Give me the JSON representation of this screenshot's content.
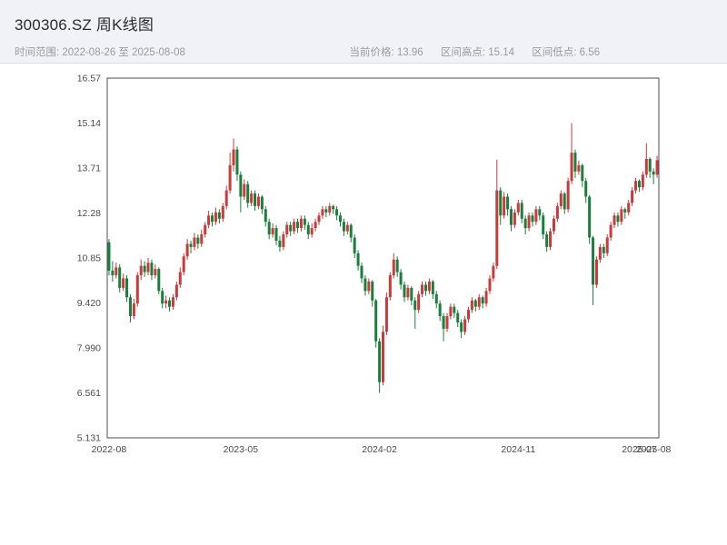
{
  "header": {
    "title": "300306.SZ 周K线图",
    "time_range": "时间范围: 2022-08-26 至 2025-08-08",
    "current_price": "当前价格: 13.96",
    "range_high": "区间高点: 15.14",
    "range_low": "区间低点: 6.56"
  },
  "chart_data": {
    "type": "candlestick",
    "title": "300306.SZ 周K线图",
    "xlabel": "",
    "ylabel": "",
    "grid": false,
    "current_price": 13.96,
    "range_high": 15.14,
    "range_low": 6.56,
    "y_min": 5.131,
    "y_max": 16.57,
    "y_tick_labels": [
      "16.57",
      "15.14",
      "13.71",
      "12.28",
      "10.85",
      "9.420",
      "7.990",
      "6.561",
      "5.131"
    ],
    "x_tick_labels": [
      "2022-08",
      "2023-05",
      "2024-02",
      "2024-11",
      "2025-07",
      "2025-08"
    ],
    "x_tick_weeks": [
      0,
      37,
      76,
      115,
      149,
      153
    ],
    "up_color": "#c93a3a",
    "down_color": "#1a7f3c",
    "axis_color": "#4d4d54",
    "candles_ohlc": [
      [
        11.35,
        11.45,
        10.3,
        10.45
      ],
      [
        10.45,
        10.75,
        10.1,
        10.3
      ],
      [
        10.3,
        10.7,
        10.2,
        10.55
      ],
      [
        10.55,
        10.65,
        9.75,
        9.9
      ],
      [
        9.9,
        10.35,
        9.8,
        10.2
      ],
      [
        10.2,
        10.3,
        9.45,
        9.6
      ],
      [
        9.6,
        9.7,
        8.8,
        9.0
      ],
      [
        9.0,
        9.55,
        8.9,
        9.4
      ],
      [
        9.4,
        10.4,
        9.3,
        10.3
      ],
      [
        10.3,
        10.8,
        10.15,
        10.6
      ],
      [
        10.6,
        10.75,
        10.25,
        10.4
      ],
      [
        10.4,
        10.85,
        10.3,
        10.7
      ],
      [
        10.7,
        10.8,
        10.15,
        10.3
      ],
      [
        10.3,
        10.65,
        10.2,
        10.5
      ],
      [
        10.5,
        10.55,
        9.7,
        9.8
      ],
      [
        9.8,
        9.9,
        9.25,
        9.4
      ],
      [
        9.4,
        9.65,
        9.25,
        9.5
      ],
      [
        9.5,
        9.6,
        9.15,
        9.3
      ],
      [
        9.3,
        9.7,
        9.2,
        9.6
      ],
      [
        9.6,
        10.1,
        9.5,
        10.0
      ],
      [
        10.0,
        10.55,
        9.9,
        10.4
      ],
      [
        10.4,
        11.0,
        10.3,
        10.9
      ],
      [
        10.9,
        11.45,
        10.8,
        11.3
      ],
      [
        11.3,
        11.4,
        11.0,
        11.2
      ],
      [
        11.2,
        11.65,
        11.1,
        11.5
      ],
      [
        11.5,
        11.6,
        11.15,
        11.3
      ],
      [
        11.3,
        11.75,
        11.2,
        11.6
      ],
      [
        11.6,
        12.0,
        11.5,
        11.9
      ],
      [
        11.9,
        12.35,
        11.8,
        12.2
      ],
      [
        12.2,
        12.3,
        11.85,
        12.0
      ],
      [
        12.0,
        12.45,
        11.9,
        12.3
      ],
      [
        12.3,
        12.4,
        11.95,
        12.1
      ],
      [
        12.1,
        12.6,
        12.0,
        12.5
      ],
      [
        12.5,
        13.15,
        12.4,
        13.0
      ],
      [
        13.0,
        14.2,
        12.9,
        13.8
      ],
      [
        13.8,
        14.65,
        13.6,
        14.3
      ],
      [
        14.3,
        14.4,
        13.3,
        13.5
      ],
      [
        13.5,
        13.6,
        12.3,
        12.8
      ],
      [
        12.8,
        13.35,
        12.7,
        13.2
      ],
      [
        13.2,
        13.3,
        12.45,
        12.6
      ],
      [
        12.6,
        13.0,
        12.5,
        12.9
      ],
      [
        12.9,
        13.0,
        12.35,
        12.5
      ],
      [
        12.5,
        12.9,
        12.4,
        12.8
      ],
      [
        12.8,
        12.85,
        12.25,
        12.4
      ],
      [
        12.4,
        12.5,
        11.85,
        12.0
      ],
      [
        12.0,
        12.1,
        11.45,
        11.6
      ],
      [
        11.6,
        11.95,
        11.5,
        11.8
      ],
      [
        11.8,
        11.9,
        11.25,
        11.4
      ],
      [
        11.4,
        11.55,
        11.05,
        11.2
      ],
      [
        11.2,
        11.7,
        11.1,
        11.6
      ],
      [
        11.6,
        12.0,
        11.5,
        11.9
      ],
      [
        11.9,
        12.0,
        11.55,
        11.7
      ],
      [
        11.7,
        12.1,
        11.6,
        12.0
      ],
      [
        12.0,
        12.1,
        11.65,
        11.8
      ],
      [
        11.8,
        12.2,
        11.7,
        12.1
      ],
      [
        12.1,
        12.2,
        11.75,
        11.9
      ],
      [
        11.9,
        12.0,
        11.45,
        11.6
      ],
      [
        11.6,
        11.95,
        11.5,
        11.8
      ],
      [
        11.8,
        12.1,
        11.7,
        12.0
      ],
      [
        12.0,
        12.3,
        11.9,
        12.2
      ],
      [
        12.2,
        12.5,
        12.1,
        12.4
      ],
      [
        12.4,
        12.5,
        12.15,
        12.3
      ],
      [
        12.3,
        12.6,
        12.2,
        12.5
      ],
      [
        12.5,
        12.55,
        12.25,
        12.4
      ],
      [
        12.4,
        12.5,
        12.05,
        12.2
      ],
      [
        12.2,
        12.3,
        11.85,
        12.0
      ],
      [
        12.0,
        12.1,
        11.55,
        11.7
      ],
      [
        11.7,
        12.0,
        11.6,
        11.9
      ],
      [
        11.9,
        11.95,
        11.35,
        11.5
      ],
      [
        11.5,
        11.6,
        10.85,
        11.0
      ],
      [
        11.0,
        11.1,
        10.45,
        10.6
      ],
      [
        10.6,
        10.7,
        10.05,
        10.2
      ],
      [
        10.2,
        10.3,
        9.65,
        9.8
      ],
      [
        9.8,
        10.2,
        9.7,
        10.1
      ],
      [
        10.1,
        10.15,
        9.3,
        9.5
      ],
      [
        9.5,
        9.55,
        8.0,
        8.2
      ],
      [
        8.2,
        8.3,
        6.56,
        6.9
      ],
      [
        6.9,
        8.7,
        6.8,
        8.5
      ],
      [
        8.5,
        9.75,
        8.4,
        9.6
      ],
      [
        9.6,
        10.4,
        9.5,
        10.3
      ],
      [
        10.3,
        11.0,
        10.2,
        10.8
      ],
      [
        10.8,
        10.9,
        10.25,
        10.4
      ],
      [
        10.4,
        10.5,
        9.85,
        10.0
      ],
      [
        10.0,
        10.1,
        9.45,
        9.6
      ],
      [
        9.6,
        10.0,
        9.5,
        9.9
      ],
      [
        9.9,
        9.95,
        9.35,
        9.5
      ],
      [
        9.5,
        9.6,
        8.6,
        9.2
      ],
      [
        9.2,
        9.8,
        9.1,
        9.7
      ],
      [
        9.7,
        10.1,
        9.6,
        10.0
      ],
      [
        10.0,
        10.1,
        9.65,
        9.8
      ],
      [
        9.8,
        10.2,
        9.7,
        10.1
      ],
      [
        10.1,
        10.15,
        9.55,
        9.7
      ],
      [
        9.7,
        9.8,
        9.25,
        9.4
      ],
      [
        9.4,
        9.5,
        8.85,
        9.0
      ],
      [
        9.0,
        9.1,
        8.2,
        8.6
      ],
      [
        8.6,
        9.1,
        8.5,
        9.0
      ],
      [
        9.0,
        9.4,
        8.9,
        9.3
      ],
      [
        9.3,
        9.4,
        8.95,
        9.1
      ],
      [
        9.1,
        9.2,
        8.65,
        8.8
      ],
      [
        8.8,
        8.9,
        8.3,
        8.5
      ],
      [
        8.5,
        9.0,
        8.4,
        8.9
      ],
      [
        8.9,
        9.3,
        8.8,
        9.2
      ],
      [
        9.2,
        9.6,
        9.1,
        9.5
      ],
      [
        9.5,
        9.55,
        9.15,
        9.3
      ],
      [
        9.3,
        9.7,
        9.2,
        9.6
      ],
      [
        9.6,
        9.65,
        9.25,
        9.4
      ],
      [
        9.4,
        9.9,
        9.3,
        9.8
      ],
      [
        9.8,
        10.3,
        9.7,
        10.2
      ],
      [
        10.2,
        10.7,
        10.1,
        10.6
      ],
      [
        10.6,
        13.98,
        10.5,
        13.0
      ],
      [
        13.0,
        13.1,
        11.9,
        12.2
      ],
      [
        12.2,
        12.95,
        12.1,
        12.8
      ],
      [
        12.8,
        12.9,
        12.2,
        12.4
      ],
      [
        12.4,
        12.5,
        11.7,
        11.9
      ],
      [
        11.9,
        12.4,
        11.8,
        12.3
      ],
      [
        12.3,
        12.7,
        12.2,
        12.6
      ],
      [
        12.6,
        12.7,
        11.95,
        12.1
      ],
      [
        12.1,
        12.2,
        11.6,
        11.8
      ],
      [
        11.8,
        12.3,
        11.7,
        12.2
      ],
      [
        12.2,
        12.3,
        11.85,
        12.0
      ],
      [
        12.0,
        12.5,
        11.9,
        12.4
      ],
      [
        12.4,
        12.5,
        12.05,
        12.2
      ],
      [
        12.2,
        12.3,
        11.45,
        11.6
      ],
      [
        11.6,
        11.7,
        11.05,
        11.2
      ],
      [
        11.2,
        11.8,
        11.1,
        11.7
      ],
      [
        11.7,
        12.2,
        11.6,
        12.1
      ],
      [
        12.1,
        12.6,
        12.0,
        12.5
      ],
      [
        12.5,
        13.0,
        12.4,
        12.9
      ],
      [
        12.9,
        12.95,
        12.25,
        12.4
      ],
      [
        12.4,
        13.4,
        12.3,
        13.3
      ],
      [
        13.3,
        15.14,
        13.2,
        14.2
      ],
      [
        14.2,
        14.3,
        13.4,
        13.6
      ],
      [
        13.6,
        13.95,
        13.5,
        13.8
      ],
      [
        13.8,
        13.85,
        13.1,
        13.3
      ],
      [
        13.3,
        13.4,
        12.6,
        12.8
      ],
      [
        12.8,
        12.85,
        11.3,
        11.5
      ],
      [
        11.5,
        11.55,
        9.35,
        10.0
      ],
      [
        10.0,
        10.9,
        9.9,
        10.8
      ],
      [
        10.8,
        11.3,
        10.7,
        11.2
      ],
      [
        11.2,
        11.3,
        10.85,
        11.0
      ],
      [
        11.0,
        11.6,
        10.9,
        11.5
      ],
      [
        11.5,
        12.0,
        11.4,
        11.9
      ],
      [
        11.9,
        12.3,
        11.8,
        12.2
      ],
      [
        12.2,
        12.3,
        11.85,
        12.0
      ],
      [
        12.0,
        12.5,
        11.9,
        12.4
      ],
      [
        12.4,
        12.45,
        12.1,
        12.3
      ],
      [
        12.3,
        12.7,
        12.2,
        12.6
      ],
      [
        12.6,
        13.1,
        12.5,
        13.0
      ],
      [
        13.0,
        13.4,
        12.9,
        13.3
      ],
      [
        13.3,
        13.35,
        12.95,
        13.1
      ],
      [
        13.1,
        13.6,
        13.0,
        13.5
      ],
      [
        13.5,
        14.5,
        13.4,
        14.0
      ],
      [
        14.0,
        14.05,
        13.4,
        13.6
      ],
      [
        13.6,
        13.7,
        13.2,
        13.5
      ],
      [
        13.5,
        14.1,
        13.4,
        13.96
      ]
    ]
  }
}
